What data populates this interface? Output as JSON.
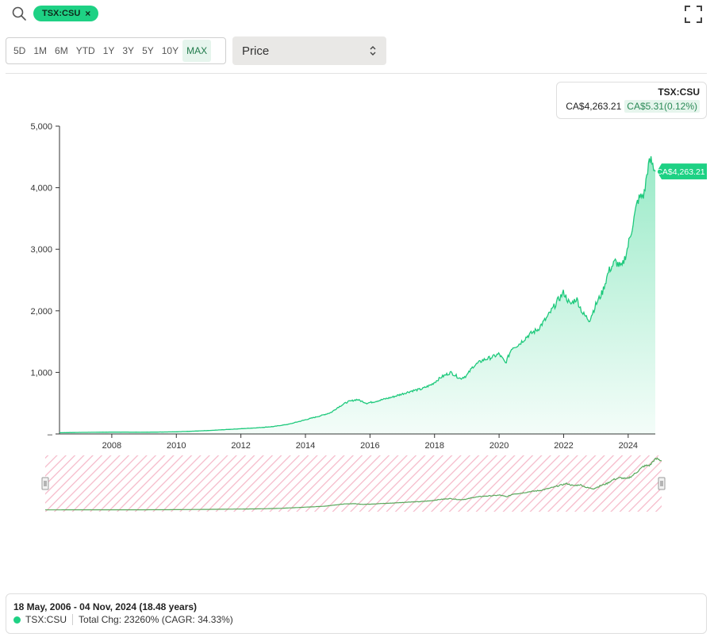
{
  "search": {
    "ticker_chip": "TSX:CSU",
    "chip_close": "×"
  },
  "ranges": [
    {
      "label": "5D",
      "active": false
    },
    {
      "label": "1M",
      "active": false
    },
    {
      "label": "6M",
      "active": false
    },
    {
      "label": "YTD",
      "active": false
    },
    {
      "label": "1Y",
      "active": false
    },
    {
      "label": "3Y",
      "active": false
    },
    {
      "label": "5Y",
      "active": false
    },
    {
      "label": "10Y",
      "active": false
    },
    {
      "label": "MAX",
      "active": true
    }
  ],
  "metric_select": {
    "value": "Price"
  },
  "legend": {
    "ticker": "TSX:CSU",
    "price": "CA$4,263.21",
    "change": "CA$5.31(0.12%)"
  },
  "summary": {
    "date_range": "18 May, 2006 - 04 Nov, 2024 (18.48 years)",
    "ticker": "TSX:CSU",
    "total_change": "Total Chg: 23260% (CAGR: 34.33%)"
  },
  "colors": {
    "accent": "#1ed184",
    "line": "#1ec97c",
    "navigator_band": "#f5b9c9"
  },
  "chart_data": {
    "type": "area",
    "title": "",
    "xlabel": "",
    "ylabel": "",
    "x_ticks": [
      "2008",
      "2010",
      "2012",
      "2014",
      "2016",
      "2018",
      "2020",
      "2022",
      "2024"
    ],
    "y_ticks": [
      "5,000",
      "4,000",
      "3,000",
      "2,000",
      "1,000",
      "–"
    ],
    "ylim": [
      0,
      5000
    ],
    "xlim": [
      2006.38,
      2024.84
    ],
    "last_price_label": "CA$4,263.21",
    "series": [
      {
        "name": "TSX:CSU",
        "x": [
          2006.38,
          2007.0,
          2008.0,
          2009.0,
          2010.0,
          2011.0,
          2011.5,
          2012.0,
          2012.5,
          2013.0,
          2013.5,
          2014.0,
          2014.5,
          2014.8,
          2015.0,
          2015.3,
          2015.6,
          2015.9,
          2016.1,
          2016.4,
          2016.7,
          2017.0,
          2017.3,
          2017.6,
          2017.9,
          2018.2,
          2018.5,
          2018.8,
          2019.0,
          2019.2,
          2019.5,
          2019.8,
          2020.0,
          2020.2,
          2020.4,
          2020.6,
          2020.9,
          2021.2,
          2021.5,
          2021.8,
          2022.0,
          2022.2,
          2022.4,
          2022.6,
          2022.8,
          2023.0,
          2023.2,
          2023.4,
          2023.6,
          2023.8,
          2023.95,
          2024.1,
          2024.3,
          2024.5,
          2024.6,
          2024.7,
          2024.84
        ],
        "values": [
          20,
          25,
          30,
          28,
          35,
          55,
          70,
          85,
          100,
          120,
          160,
          230,
          300,
          350,
          430,
          520,
          560,
          500,
          520,
          560,
          600,
          650,
          700,
          730,
          800,
          920,
          1000,
          900,
          950,
          1100,
          1200,
          1250,
          1300,
          1150,
          1400,
          1450,
          1600,
          1700,
          1900,
          2150,
          2300,
          2100,
          2200,
          1950,
          1850,
          2100,
          2300,
          2650,
          2800,
          2700,
          2950,
          3300,
          3800,
          3900,
          4300,
          4450,
          4263.21
        ]
      }
    ]
  }
}
